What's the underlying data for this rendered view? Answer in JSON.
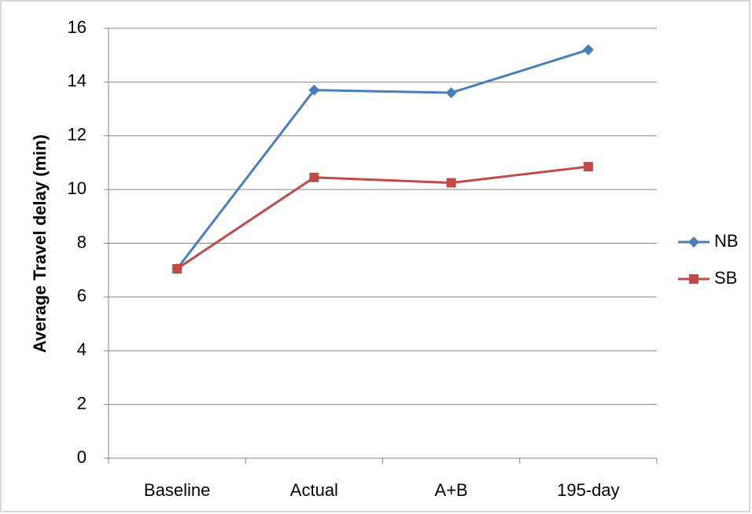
{
  "chart_data": {
    "type": "line",
    "y_label": "Average Travel delay (min)",
    "categories": [
      "Baseline",
      "Actual",
      "A+B",
      "195-day"
    ],
    "series": [
      {
        "name": "NB",
        "color": "#4a7ebb",
        "marker": "diamond",
        "values": [
          7.05,
          13.7,
          13.6,
          15.2
        ]
      },
      {
        "name": "SB",
        "color": "#be4b48",
        "marker": "square",
        "values": [
          7.05,
          10.45,
          10.25,
          10.85
        ]
      }
    ],
    "ylim": [
      0,
      16
    ],
    "yticks": [
      0,
      2,
      4,
      6,
      8,
      10,
      12,
      14,
      16
    ],
    "grid": true,
    "legend": "right"
  }
}
